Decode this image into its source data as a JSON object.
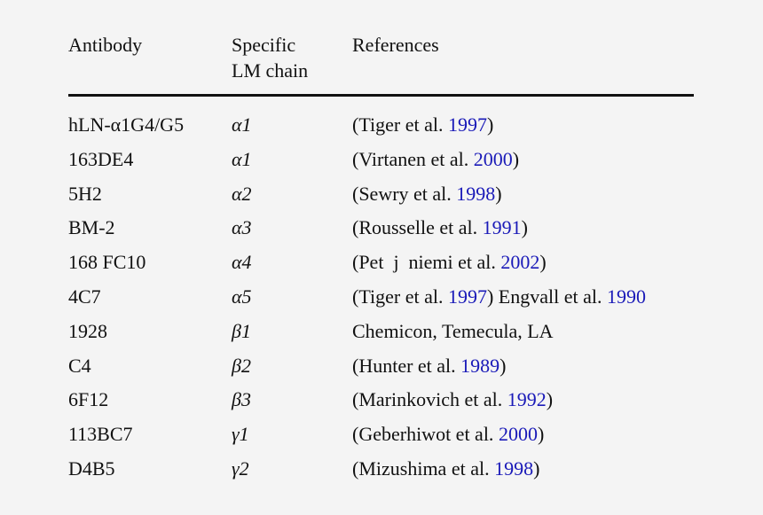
{
  "headers": {
    "antibody": "Antibody",
    "chain_line1": "Specific",
    "chain_line2": "LM chain",
    "references": "References"
  },
  "colors": {
    "link": "#1a1ab8",
    "text": "#111111"
  },
  "rows": [
    {
      "antibody": "hLN-α1G4/G5",
      "chain": "α1",
      "pre": "(Tiger et al. ",
      "year": "1997",
      "post": ")",
      "extra": "",
      "year2": "",
      "post2": ""
    },
    {
      "antibody": "163DE4",
      "chain": "α1",
      "pre": "(Virtanen et al. ",
      "year": "2000",
      "post": ")",
      "extra": "",
      "year2": "",
      "post2": ""
    },
    {
      "antibody": "5H2",
      "chain": "α2",
      "pre": "(Sewry et al. ",
      "year": "1998",
      "post": ")",
      "extra": "",
      "year2": "",
      "post2": ""
    },
    {
      "antibody": "BM-2",
      "chain": "α3",
      "pre": "(Rousselle et al. ",
      "year": "1991",
      "post": ")",
      "extra": "",
      "year2": "",
      "post2": ""
    },
    {
      "antibody": "168 FC10",
      "chain": "α4",
      "pre": "(Pet  j  niemi et al. ",
      "year": "2002",
      "post": ")",
      "extra": "",
      "year2": "",
      "post2": ""
    },
    {
      "antibody": "4C7",
      "chain": "α5",
      "pre": "(Tiger et al. ",
      "year": "1997",
      "post": ")",
      "extra": " Engvall et al. ",
      "year2": "1990",
      "post2": ""
    },
    {
      "antibody": "1928",
      "chain": "β1",
      "pre": "Chemicon, Temecula, LA",
      "year": "",
      "post": "",
      "extra": "",
      "year2": "",
      "post2": ""
    },
    {
      "antibody": "C4",
      "chain": "β2",
      "pre": "(Hunter et al. ",
      "year": "1989",
      "post": ")",
      "extra": "",
      "year2": "",
      "post2": ""
    },
    {
      "antibody": "6F12",
      "chain": "β3",
      "pre": "(Marinkovich et al. ",
      "year": "1992",
      "post": ")",
      "extra": "",
      "year2": "",
      "post2": ""
    },
    {
      "antibody": "113BC7",
      "chain": "γ1",
      "pre": "(Geberhiwot et al. ",
      "year": "2000",
      "post": ")",
      "extra": "",
      "year2": "",
      "post2": ""
    },
    {
      "antibody": "D4B5",
      "chain": "γ2",
      "pre": "(Mizushima et al. ",
      "year": "1998",
      "post": ")",
      "extra": "",
      "year2": "",
      "post2": ""
    }
  ]
}
